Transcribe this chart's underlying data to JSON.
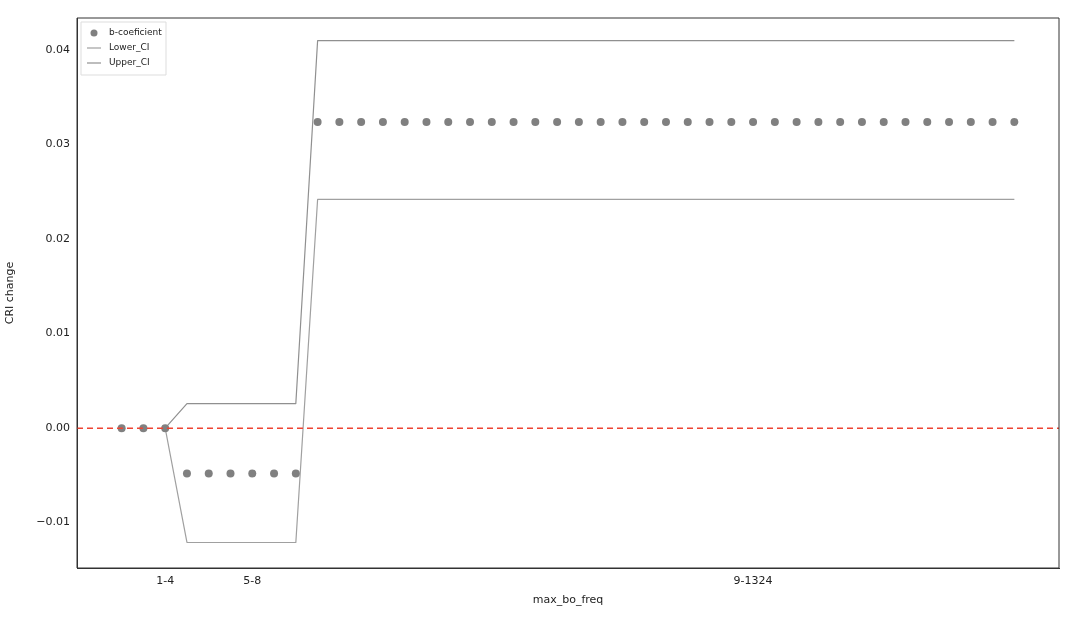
{
  "chart_data": {
    "type": "scatter",
    "xlabel": "max_bo_freq",
    "ylabel": "CRI change",
    "categories": [
      null,
      null,
      "1-4",
      null,
      null,
      null,
      "5-8",
      null,
      null,
      null,
      null,
      null,
      null,
      null,
      null,
      null,
      null,
      null,
      null,
      null,
      null,
      null,
      null,
      null,
      null,
      null,
      null,
      null,
      null,
      "9-1324",
      null,
      null,
      null,
      null,
      null,
      null,
      null,
      null,
      null,
      null,
      null,
      null
    ],
    "series": [
      {
        "name": "b-coeficient",
        "type": "scatter",
        "marker": "circle",
        "color": "#808080",
        "values": [
          0,
          0,
          0,
          -0.0048,
          -0.0048,
          -0.0048,
          -0.0048,
          -0.0048,
          -0.0048,
          0.0324,
          0.0324,
          0.0324,
          0.0324,
          0.0324,
          0.0324,
          0.0324,
          0.0324,
          0.0324,
          0.0324,
          0.0324,
          0.0324,
          0.0324,
          0.0324,
          0.0324,
          0.0324,
          0.0324,
          0.0324,
          0.0324,
          0.0324,
          0.0324,
          0.0324,
          0.0324,
          0.0324,
          0.0324,
          0.0324,
          0.0324,
          0.0324,
          0.0324,
          0.0324,
          0.0324,
          0.0324,
          0.0324
        ]
      },
      {
        "name": "Lower_CI",
        "type": "line",
        "color": "#a0a0a0",
        "values": [
          null,
          null,
          0,
          -0.0121,
          -0.0121,
          -0.0121,
          -0.0121,
          -0.0121,
          -0.0121,
          0.0242,
          0.0242,
          0.0242,
          0.0242,
          0.0242,
          0.0242,
          0.0242,
          0.0242,
          0.0242,
          0.0242,
          0.0242,
          0.0242,
          0.0242,
          0.0242,
          0.0242,
          0.0242,
          0.0242,
          0.0242,
          0.0242,
          0.0242,
          0.0242,
          0.0242,
          0.0242,
          0.0242,
          0.0242,
          0.0242,
          0.0242,
          0.0242,
          0.0242,
          0.0242,
          0.0242,
          0.0242,
          0.0242
        ]
      },
      {
        "name": "Upper_CI",
        "type": "line",
        "color": "#909090",
        "values": [
          null,
          null,
          0,
          0.0026,
          0.0026,
          0.0026,
          0.0026,
          0.0026,
          0.0026,
          0.041,
          0.041,
          0.041,
          0.041,
          0.041,
          0.041,
          0.041,
          0.041,
          0.041,
          0.041,
          0.041,
          0.041,
          0.041,
          0.041,
          0.041,
          0.041,
          0.041,
          0.041,
          0.041,
          0.041,
          0.041,
          0.041,
          0.041,
          0.041,
          0.041,
          0.041,
          0.041,
          0.041,
          0.041,
          0.041,
          0.041,
          0.041,
          0.041
        ]
      }
    ],
    "ylim": [
      -0.0148,
      0.0434
    ],
    "yticks": [
      {
        "value": -0.01,
        "label": "−0.01"
      },
      {
        "value": 0,
        "label": "0.00"
      },
      {
        "value": 0.01,
        "label": "0.01"
      },
      {
        "value": 0.02,
        "label": "0.02"
      },
      {
        "value": 0.03,
        "label": "0.03"
      },
      {
        "value": 0.04,
        "label": "0.04"
      }
    ],
    "ref_lines": [
      {
        "axis": "y",
        "value": 0,
        "color": "#ee4433",
        "line_style": "dashed"
      }
    ],
    "grid": false,
    "legend": "top left",
    "line_style": "solid"
  }
}
